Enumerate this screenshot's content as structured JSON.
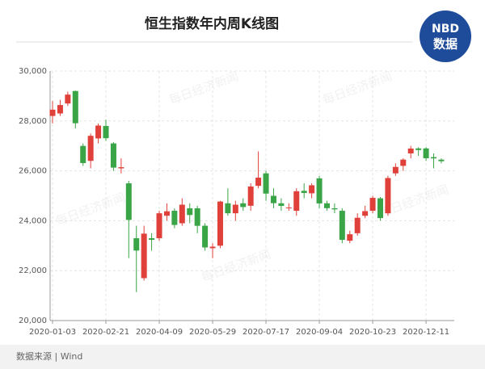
{
  "chart_data": {
    "type": "candlestick",
    "title": "恒生指数年内周K线图",
    "logo": [
      "NBD",
      "数据"
    ],
    "source": "数据来源 | Wind",
    "watermark": "每日经济新闻",
    "categories": [
      "2020-01-03",
      null,
      null,
      null,
      null,
      null,
      null,
      "2020-02-21",
      null,
      null,
      null,
      null,
      null,
      null,
      "2020-04-09",
      null,
      null,
      null,
      null,
      null,
      null,
      "2020-05-29",
      null,
      null,
      null,
      null,
      null,
      null,
      "2020-07-17",
      null,
      null,
      null,
      null,
      null,
      null,
      "2020-09-04",
      null,
      null,
      null,
      null,
      null,
      null,
      "2020-10-23",
      null,
      null,
      null,
      null,
      null,
      null,
      "2020-12-11",
      null,
      null
    ],
    "open": [
      28200,
      28300,
      28700,
      29200,
      27000,
      26400,
      27300,
      27800,
      27100,
      26100,
      25500,
      23300,
      21700,
      23300,
      23300,
      24200,
      24400,
      23900,
      24500,
      24500,
      23800,
      22900,
      23000,
      24700,
      24300,
      24700,
      24600,
      25400,
      25900,
      25000,
      24700,
      24500,
      24400,
      25200,
      25100,
      25700,
      24700,
      24500,
      24400,
      23200,
      23500,
      24200,
      24400,
      24900,
      24300,
      25900,
      26200,
      26700,
      26900,
      26900,
      26550,
      26450
    ],
    "high": [
      28800,
      28850,
      29175,
      29220,
      27100,
      27500,
      27900,
      28050,
      27150,
      26500,
      25600,
      23800,
      23800,
      23500,
      24400,
      24700,
      24500,
      24900,
      24700,
      24600,
      23900,
      23100,
      24800,
      25300,
      24800,
      24900,
      25500,
      26782,
      26000,
      25300,
      24900,
      24700,
      25300,
      25500,
      25500,
      25800,
      24800,
      24700,
      24500,
      23600,
      24300,
      24600,
      25000,
      24950,
      25800,
      26300,
      26500,
      27000,
      26950,
      26950,
      26700,
      26500
    ],
    "low": [
      27900,
      28200,
      28600,
      27700,
      26200,
      26100,
      27100,
      27200,
      26000,
      25900,
      22500,
      21140,
      21600,
      22800,
      23200,
      24000,
      23700,
      23800,
      23900,
      23500,
      22800,
      22500,
      22900,
      24200,
      24000,
      24400,
      24400,
      25300,
      24800,
      24500,
      24400,
      24400,
      24200,
      24900,
      24900,
      24500,
      24400,
      24300,
      23100,
      23100,
      23400,
      24100,
      24300,
      24000,
      24200,
      25800,
      26000,
      26500,
      26600,
      26400,
      26100,
      26300
    ],
    "close": [
      28452,
      28638,
      29056,
      27909,
      26313,
      27404,
      27816,
      27309,
      26130,
      26146,
      24033,
      22805,
      23484,
      23236,
      24300,
      24380,
      23831,
      24644,
      24230,
      23797,
      22930,
      22961,
      24770,
      24301,
      24644,
      24549,
      25373,
      25727,
      25089,
      24705,
      24595,
      24531,
      25183,
      25113,
      25422,
      24695,
      24503,
      24455,
      23235,
      23459,
      24119,
      24386,
      24918,
      24107,
      25712,
      26157,
      26451,
      26894,
      26835,
      26506,
      26498,
      26387
    ],
    "up_color": "#e0403a",
    "down_color": "#3aa546",
    "ylim": [
      20000,
      30000
    ],
    "yticks": [
      {
        "value": 20000,
        "label": "20,000"
      },
      {
        "value": 22000,
        "label": "22,000"
      },
      {
        "value": 24000,
        "label": "24,000"
      },
      {
        "value": 26000,
        "label": "26,000"
      },
      {
        "value": 28000,
        "label": "28,000"
      },
      {
        "value": 30000,
        "label": "30,000"
      }
    ],
    "grid": true
  }
}
